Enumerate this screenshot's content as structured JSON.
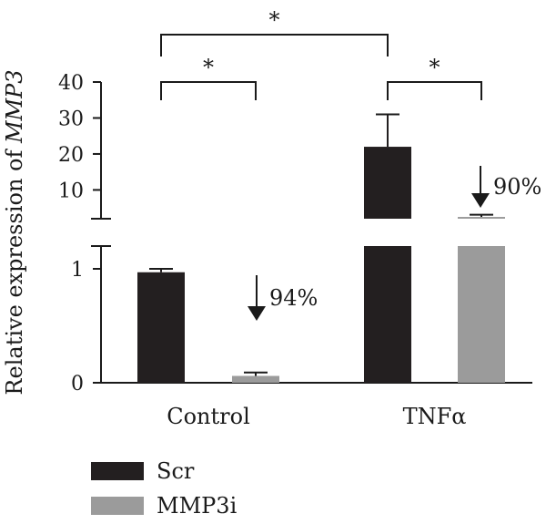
{
  "chart_data": {
    "type": "bar",
    "ylabel_prefix": "Relative expression of ",
    "ylabel_gene": "MMP3",
    "categories": [
      "Control",
      "TNFα"
    ],
    "series": [
      {
        "name": "Scr",
        "values": [
          0.97,
          22
        ],
        "errors": [
          0.03,
          9
        ],
        "color": "#231f20"
      },
      {
        "name": "MMP3i",
        "values": [
          0.06,
          2.5
        ],
        "errors": [
          0.03,
          0.6
        ],
        "color": "#9b9b9b"
      }
    ],
    "y_axis_broken": true,
    "y_segments": [
      {
        "range": [
          0,
          1.2
        ],
        "ticks": [
          0,
          1
        ]
      },
      {
        "range": [
          2,
          40
        ],
        "ticks": [
          10,
          20,
          30,
          40
        ]
      }
    ],
    "reduction_annotations": [
      {
        "category": "Control",
        "text": "94%"
      },
      {
        "category": "TNFα",
        "text": "90%"
      }
    ],
    "significance": [
      {
        "from": "Control:Scr",
        "to": "Control:MMP3i",
        "label": "*"
      },
      {
        "from": "TNFα:Scr",
        "to": "TNFα:MMP3i",
        "label": "*"
      },
      {
        "from": "Control:Scr",
        "to": "TNFα:Scr",
        "label": "*"
      }
    ],
    "legend_position": "bottom-left"
  }
}
